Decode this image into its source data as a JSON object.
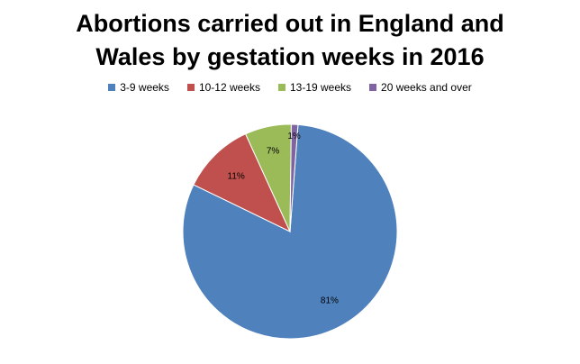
{
  "chart_data": {
    "type": "pie",
    "title_lines": [
      "Abortions carried out in England and",
      "Wales by gestation weeks in 2016"
    ],
    "legend_position": "top",
    "slices": [
      {
        "name": "3-9 weeks",
        "value": 81,
        "label": "81%",
        "color": "#4F81BD"
      },
      {
        "name": "10-12 weeks",
        "value": 11,
        "label": "11%",
        "color": "#C0504D"
      },
      {
        "name": "13-19 weeks",
        "value": 7,
        "label": "7%",
        "color": "#9BBB59"
      },
      {
        "name": "20 weeks and over",
        "value": 1,
        "label": "1%",
        "color": "#8064A2"
      }
    ]
  }
}
